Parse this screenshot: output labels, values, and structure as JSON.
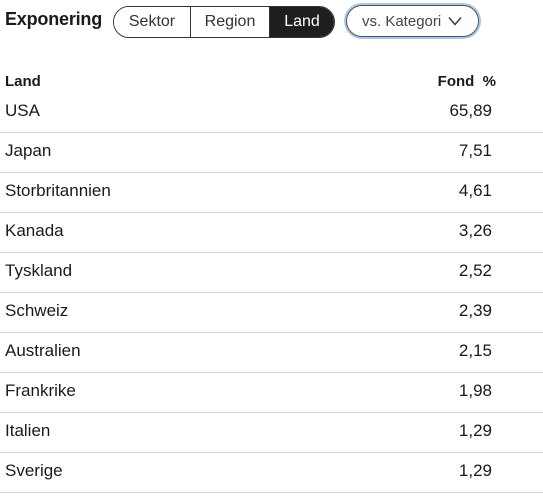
{
  "header": {
    "title": "Exponering",
    "segments": [
      {
        "label": "Sektor",
        "active": false
      },
      {
        "label": "Region",
        "active": false
      },
      {
        "label": "Land",
        "active": true
      }
    ],
    "dropdown": {
      "label": "vs. Kategori",
      "icon": "chevron-down-icon"
    }
  },
  "table": {
    "columns": {
      "land": "Land",
      "fond": "Fond  %"
    },
    "rows": [
      {
        "land": "USA",
        "value": "65,89"
      },
      {
        "land": "Japan",
        "value": "7,51"
      },
      {
        "land": "Storbritannien",
        "value": "4,61"
      },
      {
        "land": "Kanada",
        "value": "3,26"
      },
      {
        "land": "Tyskland",
        "value": "2,52"
      },
      {
        "land": "Schweiz",
        "value": "2,39"
      },
      {
        "land": "Australien",
        "value": "2,15"
      },
      {
        "land": "Frankrike",
        "value": "1,98"
      },
      {
        "land": "Italien",
        "value": "1,29"
      },
      {
        "land": "Sverige",
        "value": "1,29"
      }
    ]
  },
  "colors": {
    "active_segment_bg": "#1e1e1e",
    "focus_ring": "#a9c6ec",
    "row_divider": "#d6d6d6"
  }
}
